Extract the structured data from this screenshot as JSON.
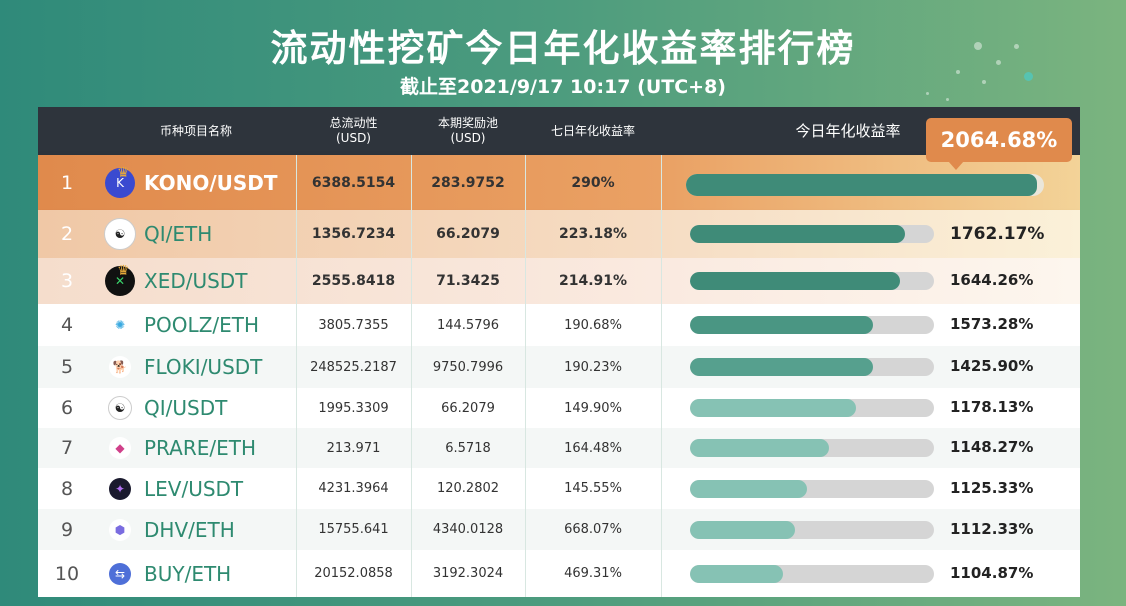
{
  "header": {
    "title": "流动性挖矿今日年化收益率排行榜",
    "subtitle": "截止至2021/9/17 10:17 (UTC+8)"
  },
  "columns": {
    "pair": "币种项目名称",
    "liquidity": [
      "总流动性",
      "(USD)"
    ],
    "reward_pool": [
      "本期奖励池",
      "(USD)"
    ],
    "apy_7d": "七日年化收益率",
    "apy_today": "今日年化收益率"
  },
  "rows": [
    {
      "rank": "1",
      "pair": "KONO/USDT",
      "liquidity": "6388.5154",
      "reward_pool": "283.9752",
      "apy_7d": "290%",
      "apy_today": "2064.68%",
      "bar_fraction": 0.98,
      "icon": "kono-coin-icon"
    },
    {
      "rank": "2",
      "pair": "QI/ETH",
      "liquidity": "1356.7234",
      "reward_pool": "66.2079",
      "apy_7d": "223.18%",
      "apy_today": "1762.17%",
      "bar_fraction": 0.88,
      "icon": "yin-yang-coin-icon"
    },
    {
      "rank": "3",
      "pair": "XED/USDT",
      "liquidity": "2555.8418",
      "reward_pool": "71.3425",
      "apy_7d": "214.91%",
      "apy_today": "1644.26%",
      "bar_fraction": 0.86,
      "icon": "xed-coin-icon"
    },
    {
      "rank": "4",
      "pair": "POOLZ/ETH",
      "liquidity": "3805.7355",
      "reward_pool": "144.5796",
      "apy_7d": "190.68%",
      "apy_today": "1573.28%",
      "bar_fraction": 0.75,
      "icon": "poolz-coin-icon"
    },
    {
      "rank": "5",
      "pair": "FLOKI/USDT",
      "liquidity": "248525.2187",
      "reward_pool": "9750.7996",
      "apy_7d": "190.23%",
      "apy_today": "1425.90%",
      "bar_fraction": 0.75,
      "icon": "floki-coin-icon"
    },
    {
      "rank": "6",
      "pair": "QI/USDT",
      "liquidity": "1995.3309",
      "reward_pool": "66.2079",
      "apy_7d": "149.90%",
      "apy_today": "1178.13%",
      "bar_fraction": 0.68,
      "icon": "yin-yang-coin-icon"
    },
    {
      "rank": "7",
      "pair": "PRARE/ETH",
      "liquidity": "213.971",
      "reward_pool": "6.5718",
      "apy_7d": "164.48%",
      "apy_today": "1148.27%",
      "bar_fraction": 0.57,
      "icon": "prare-coin-icon"
    },
    {
      "rank": "8",
      "pair": "LEV/USDT",
      "liquidity": "4231.3964",
      "reward_pool": "120.2802",
      "apy_7d": "145.55%",
      "apy_today": "1125.33%",
      "bar_fraction": 0.48,
      "icon": "lev-coin-icon"
    },
    {
      "rank": "9",
      "pair": "DHV/ETH",
      "liquidity": "15755.641",
      "reward_pool": "4340.0128",
      "apy_7d": "668.07%",
      "apy_today": "1112.33%",
      "bar_fraction": 0.43,
      "icon": "dhv-coin-icon"
    },
    {
      "rank": "10",
      "pair": "BUY/ETH",
      "liquidity": "20152.0858",
      "reward_pool": "3192.3024",
      "apy_7d": "469.31%",
      "apy_today": "1104.87%",
      "bar_fraction": 0.38,
      "icon": "buy-coin-icon"
    }
  ],
  "colors": {
    "background_left": "#2f8a7a",
    "background_right": "#7bb47f",
    "header_bar": "#2e343c",
    "rank1": "#e08a4c",
    "accent_text": "#2e8a70",
    "bar_dark": "#3f8b78",
    "bar_light": "#86c2b4"
  }
}
